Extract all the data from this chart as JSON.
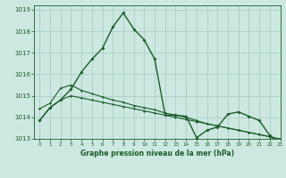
{
  "title": "Graphe pression niveau de la mer (hPa)",
  "background_color": "#cce8e0",
  "grid_color": "#aacfc8",
  "line_color": "#1a5c28",
  "xlim": [
    -0.5,
    23
  ],
  "ylim": [
    1013.0,
    1019.2
  ],
  "xticks": [
    0,
    1,
    2,
    3,
    4,
    5,
    6,
    7,
    8,
    9,
    10,
    11,
    12,
    13,
    14,
    15,
    16,
    17,
    18,
    19,
    20,
    21,
    22,
    23
  ],
  "yticks": [
    1013,
    1014,
    1015,
    1016,
    1017,
    1018,
    1019
  ],
  "series1_x": [
    0,
    1,
    2,
    3,
    4,
    5,
    6,
    7,
    8,
    9,
    10,
    11,
    12,
    13,
    14,
    15,
    16,
    17,
    18,
    19,
    20,
    21,
    22,
    23
  ],
  "series1_y": [
    1013.85,
    1014.45,
    1014.8,
    1015.3,
    1016.1,
    1016.7,
    1017.2,
    1018.2,
    1018.85,
    1018.1,
    1017.6,
    1016.7,
    1014.1,
    1014.1,
    1014.05,
    1013.05,
    1013.4,
    1013.55,
    1014.15,
    1014.25,
    1014.05,
    1013.85,
    1013.15,
    1012.8
  ],
  "series2_x": [
    0,
    1,
    2,
    3,
    4,
    5,
    6,
    7,
    8,
    9,
    10,
    11,
    12,
    13,
    14,
    15,
    16,
    17,
    18,
    19,
    20,
    21,
    22,
    23
  ],
  "series2_y": [
    1014.4,
    1014.65,
    1015.35,
    1015.5,
    1015.25,
    1015.1,
    1014.95,
    1014.8,
    1014.7,
    1014.55,
    1014.45,
    1014.35,
    1014.2,
    1014.1,
    1014.0,
    1013.85,
    1013.7,
    1013.6,
    1013.5,
    1013.4,
    1013.3,
    1013.2,
    1013.1,
    1013.0
  ],
  "series3_x": [
    0,
    1,
    2,
    3,
    4,
    5,
    6,
    7,
    8,
    9,
    10,
    11,
    12,
    13,
    14,
    15,
    16,
    17,
    18,
    19,
    20,
    21,
    22,
    23
  ],
  "series3_y": [
    1013.85,
    1014.45,
    1014.8,
    1015.0,
    1014.9,
    1014.8,
    1014.7,
    1014.6,
    1014.5,
    1014.4,
    1014.3,
    1014.2,
    1014.1,
    1014.0,
    1013.9,
    1013.8,
    1013.7,
    1013.6,
    1013.5,
    1013.4,
    1013.3,
    1013.2,
    1013.1,
    1012.9
  ]
}
